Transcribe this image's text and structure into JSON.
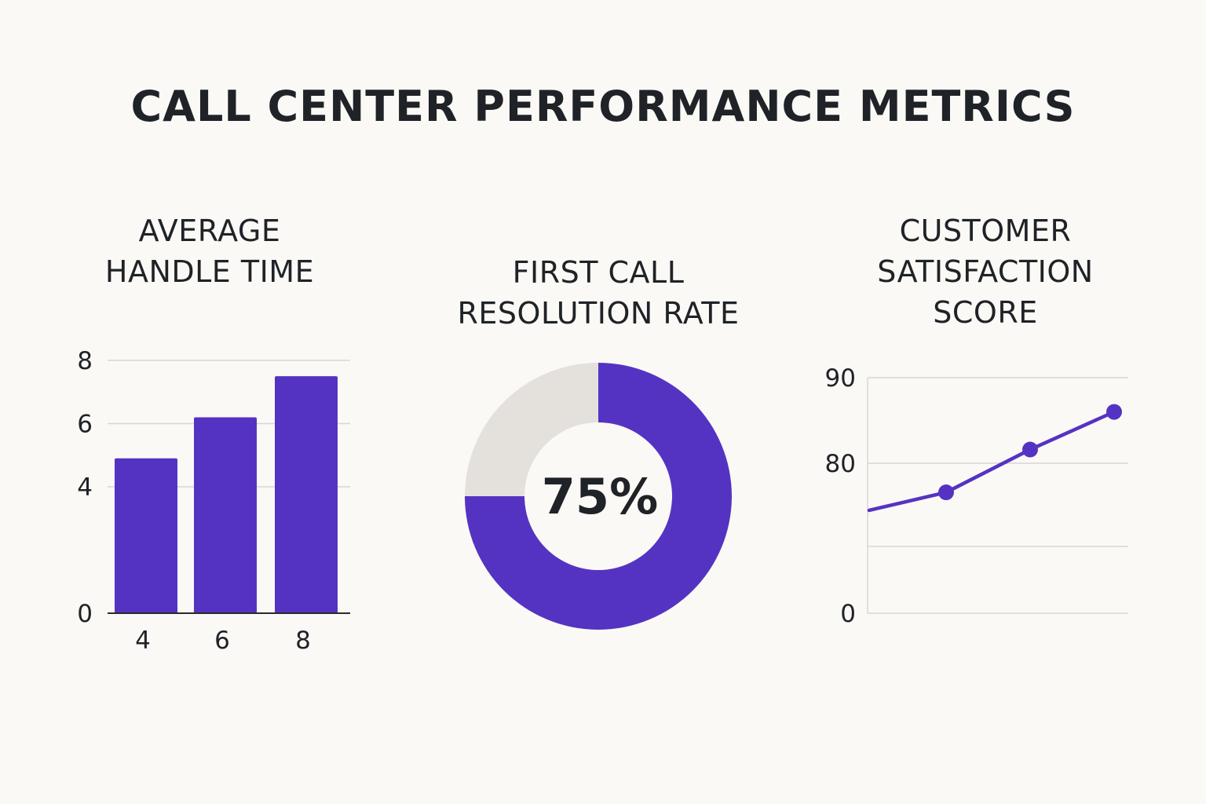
{
  "title": "CALL CENTER PERFORMANCE METRICS",
  "colors": {
    "accent": "#5533c2",
    "donut_remainder": "#e4e1dd",
    "grid": "#d9d6d2",
    "axis": "#2a2a2a",
    "background": "#fbf9f6"
  },
  "chart_data": [
    {
      "type": "bar",
      "title_lines": [
        "AVERAGE",
        "HANDLE TIME"
      ],
      "categories": [
        "4",
        "6",
        "8"
      ],
      "values": [
        4.9,
        6.2,
        7.5
      ],
      "ylim": [
        0,
        8
      ],
      "yticks": [
        {
          "value": 0,
          "label": "0"
        },
        {
          "value": 4,
          "label": "4"
        },
        {
          "value": 6,
          "label": "6"
        },
        {
          "value": 8,
          "label": "8"
        }
      ],
      "grid": true
    },
    {
      "type": "pie",
      "title_lines": [
        "FIRST CALL",
        "RESOLUTION RATE"
      ],
      "value": 75,
      "remainder": 25,
      "center_label": "75%"
    },
    {
      "type": "line",
      "title_lines": [
        "CUSTOMER",
        "SATISFACTION",
        "SCORE"
      ],
      "x": [
        0,
        1,
        2,
        3
      ],
      "y": [
        74.5,
        76.6,
        81.6,
        86.0
      ],
      "markers": [
        1,
        2,
        3
      ],
      "yticks": [
        {
          "value": 0,
          "label": "0"
        },
        {
          "value": 80,
          "label": "80"
        },
        {
          "value": 90,
          "label": "90"
        }
      ],
      "grid": true
    }
  ]
}
